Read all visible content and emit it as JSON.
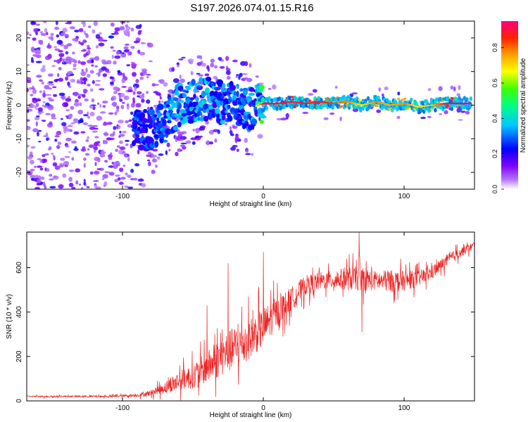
{
  "figure": {
    "title": "S197.2026.074.01.15.R16"
  },
  "chart_data": [
    {
      "type": "heatmap",
      "title": "",
      "xlabel": "Height of straight line (km)",
      "ylabel": "Frequency (Hz)",
      "xlim": [
        -168,
        150
      ],
      "ylim": [
        -25,
        25
      ],
      "xticks": [
        -100,
        0,
        100
      ],
      "yticks": [
        -20,
        -10,
        0,
        10,
        20
      ],
      "colorbar": {
        "label": "Normalized spectral amplitude",
        "range": [
          0,
          0.95
        ],
        "ticks": [
          0,
          0.2,
          0.4,
          0.6,
          0.8
        ],
        "tick_labels": [
          "0.0",
          "0.2",
          "0.4",
          "0.6",
          "0.8"
        ],
        "colormap": [
          "#ffffff",
          "#8000ff",
          "#0000ff",
          "#00ffff",
          "#00ff00",
          "#ffff00",
          "#ff8000",
          "#ff0000",
          "#ff0080"
        ]
      },
      "ridge": {
        "description": "Dominant frequency ridge vs height",
        "x": [
          -90,
          -80,
          -70,
          -60,
          -50,
          -40,
          -30,
          -20,
          -10,
          0,
          10,
          20,
          30,
          40,
          50,
          60,
          70,
          80,
          90,
          100,
          110,
          120,
          130,
          140,
          148
        ],
        "y": [
          -8,
          -7,
          -5,
          0,
          1,
          2,
          1,
          0,
          -1,
          0.5,
          0.5,
          1,
          0.5,
          1,
          0.5,
          1,
          0,
          1,
          0,
          0.5,
          -0.5,
          0,
          0.5,
          0.5,
          0.5
        ],
        "amplitude": [
          0.3,
          0.3,
          0.4,
          0.5,
          0.5,
          0.5,
          0.45,
          0.4,
          0.45,
          0.9,
          0.92,
          0.9,
          0.9,
          0.9,
          0.85,
          0.8,
          0.7,
          0.8,
          0.75,
          0.8,
          0.7,
          0.75,
          0.9,
          0.95,
          0.95
        ]
      },
      "noise": {
        "description": "Scattered low-amplitude noise, dense at heights below -80 km, sparse near the ridge above 0 km"
      }
    },
    {
      "type": "line",
      "title": "",
      "xlabel": "Height of straight line (km)",
      "ylabel": "SNR (10 * v/v)",
      "xlim": [
        -168,
        150
      ],
      "ylim": [
        0,
        760
      ],
      "xticks": [
        -100,
        0,
        100
      ],
      "yticks": [
        0,
        200,
        400,
        600
      ],
      "color": "#ee2222",
      "trend": {
        "description": "Noisy SNR trace; envelope estimate (mean and jitter amplitude) per height",
        "x": [
          -168,
          -140,
          -110,
          -90,
          -80,
          -70,
          -60,
          -50,
          -40,
          -30,
          -20,
          -10,
          0,
          10,
          20,
          30,
          40,
          50,
          60,
          70,
          80,
          90,
          100,
          110,
          120,
          130,
          140,
          150
        ],
        "mean": [
          20,
          20,
          20,
          25,
          35,
          60,
          90,
          110,
          150,
          200,
          240,
          280,
          330,
          400,
          460,
          520,
          540,
          545,
          550,
          550,
          540,
          540,
          540,
          550,
          580,
          630,
          670,
          700
        ],
        "jitter": [
          8,
          8,
          10,
          15,
          30,
          60,
          100,
          120,
          160,
          200,
          220,
          200,
          200,
          150,
          120,
          100,
          90,
          90,
          120,
          120,
          100,
          110,
          100,
          80,
          70,
          60,
          50,
          40
        ]
      },
      "notable_points": {
        "x": [
          -40,
          -25,
          0,
          35,
          68,
          70
        ],
        "y": [
          430,
          620,
          670,
          600,
          760,
          310
        ]
      }
    }
  ]
}
